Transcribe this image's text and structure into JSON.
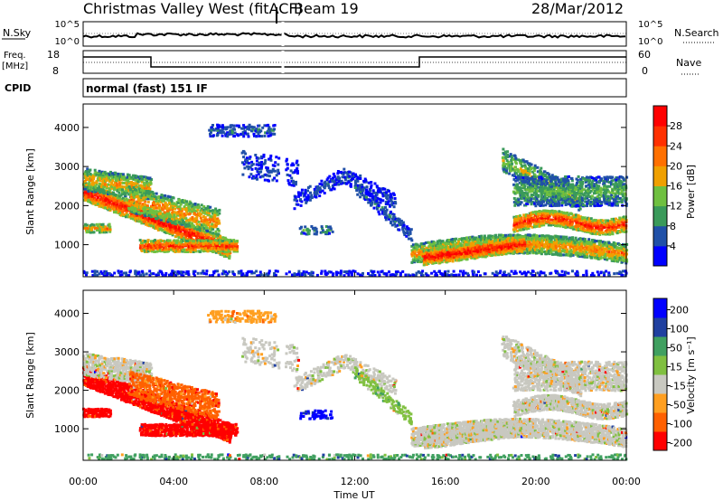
{
  "header": {
    "title": "Christmas Valley West (fitACF)",
    "beam": "Beam 19",
    "date": "28/Mar/2012"
  },
  "noise_panel": {
    "left_label": "N.Sky",
    "right_label": "N.Search",
    "left_ticks": [
      "10^5",
      "10^0"
    ],
    "right_ticks": [
      "10^5",
      "10^0"
    ]
  },
  "freq_panel": {
    "left_label_1": "Freq.",
    "left_label_2": "[MHz]",
    "right_label": "Nave",
    "left_ticks": [
      "18",
      "8"
    ],
    "right_ticks": [
      "60",
      "0"
    ]
  },
  "cpid": {
    "label": "CPID",
    "value": "normal (fast) 151 IF"
  },
  "x_axis": {
    "label": "Time UT",
    "ticks": [
      "00:00",
      "04:00",
      "08:00",
      "12:00",
      "16:00",
      "20:00",
      "00:00"
    ]
  },
  "colors": {
    "power": [
      "#0000ff",
      "#2050a8",
      "#3a9a5a",
      "#6fc040",
      "#f0a000",
      "#ff7000",
      "#ff3000",
      "#ff0000"
    ],
    "velocity": [
      "#ff0000",
      "#ff6000",
      "#ff9f20",
      "#c8c8c0",
      "#80c040",
      "#40a060",
      "#2040a0",
      "#0000ff"
    ]
  },
  "chart_data": [
    {
      "type": "heatmap",
      "name": "power",
      "ylabel": "Slant Range [km]",
      "xlabel": "",
      "y_ticks": [
        "1000",
        "2000",
        "3000",
        "4000"
      ],
      "x_range_hours": [
        0,
        24
      ],
      "y_range_km": [
        180,
        4600
      ],
      "colorbar": {
        "label": "Power [dB]",
        "ticks": [
          "4",
          "8",
          "12",
          "16",
          "20",
          "24",
          "28"
        ],
        "range": [
          0,
          32
        ]
      }
    },
    {
      "type": "heatmap",
      "name": "velocity",
      "ylabel": "Slant Range [km]",
      "xlabel": "Time UT",
      "y_ticks": [
        "1000",
        "2000",
        "3000",
        "4000"
      ],
      "x_range_hours": [
        0,
        24
      ],
      "y_range_km": [
        180,
        4600
      ],
      "colorbar": {
        "label": "Velocity [m s⁻¹]",
        "ticks": [
          "200",
          "100",
          "50",
          "15",
          "-15",
          "-50",
          "-100",
          "-200"
        ]
      }
    }
  ]
}
